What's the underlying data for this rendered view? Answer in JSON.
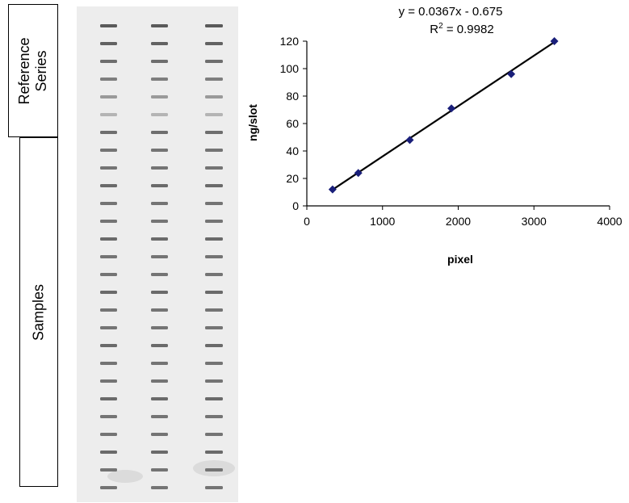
{
  "side_labels": {
    "reference": [
      "Reference",
      "Series"
    ],
    "samples": "Samples"
  },
  "blot": {
    "lanes": 3,
    "reference_bands": 7,
    "sample_bands": 20
  },
  "chart_data": {
    "type": "scatter",
    "xlabel": "pixel",
    "ylabel": "ng/slot",
    "xlim": [
      0,
      4000
    ],
    "ylim": [
      0,
      120
    ],
    "xticks": [
      0,
      1000,
      2000,
      3000,
      4000
    ],
    "yticks": [
      0,
      20,
      40,
      60,
      80,
      100,
      120
    ],
    "points": [
      {
        "x": 340,
        "y": 12
      },
      {
        "x": 680,
        "y": 24
      },
      {
        "x": 1360,
        "y": 48
      },
      {
        "x": 1910,
        "y": 71
      },
      {
        "x": 2700,
        "y": 96
      },
      {
        "x": 3270,
        "y": 120
      }
    ],
    "trendline": {
      "slope": 0.0367,
      "intercept": -0.675,
      "x_range": [
        340,
        3270
      ]
    },
    "equation": "y = 0.0367x - 0.675",
    "r2_prefix": "R",
    "r2_sup": "2",
    "r2_value": " = 0.9982",
    "marker_color": "#1a1f7a",
    "line_color": "#000000",
    "grid": false,
    "legend": "none"
  }
}
